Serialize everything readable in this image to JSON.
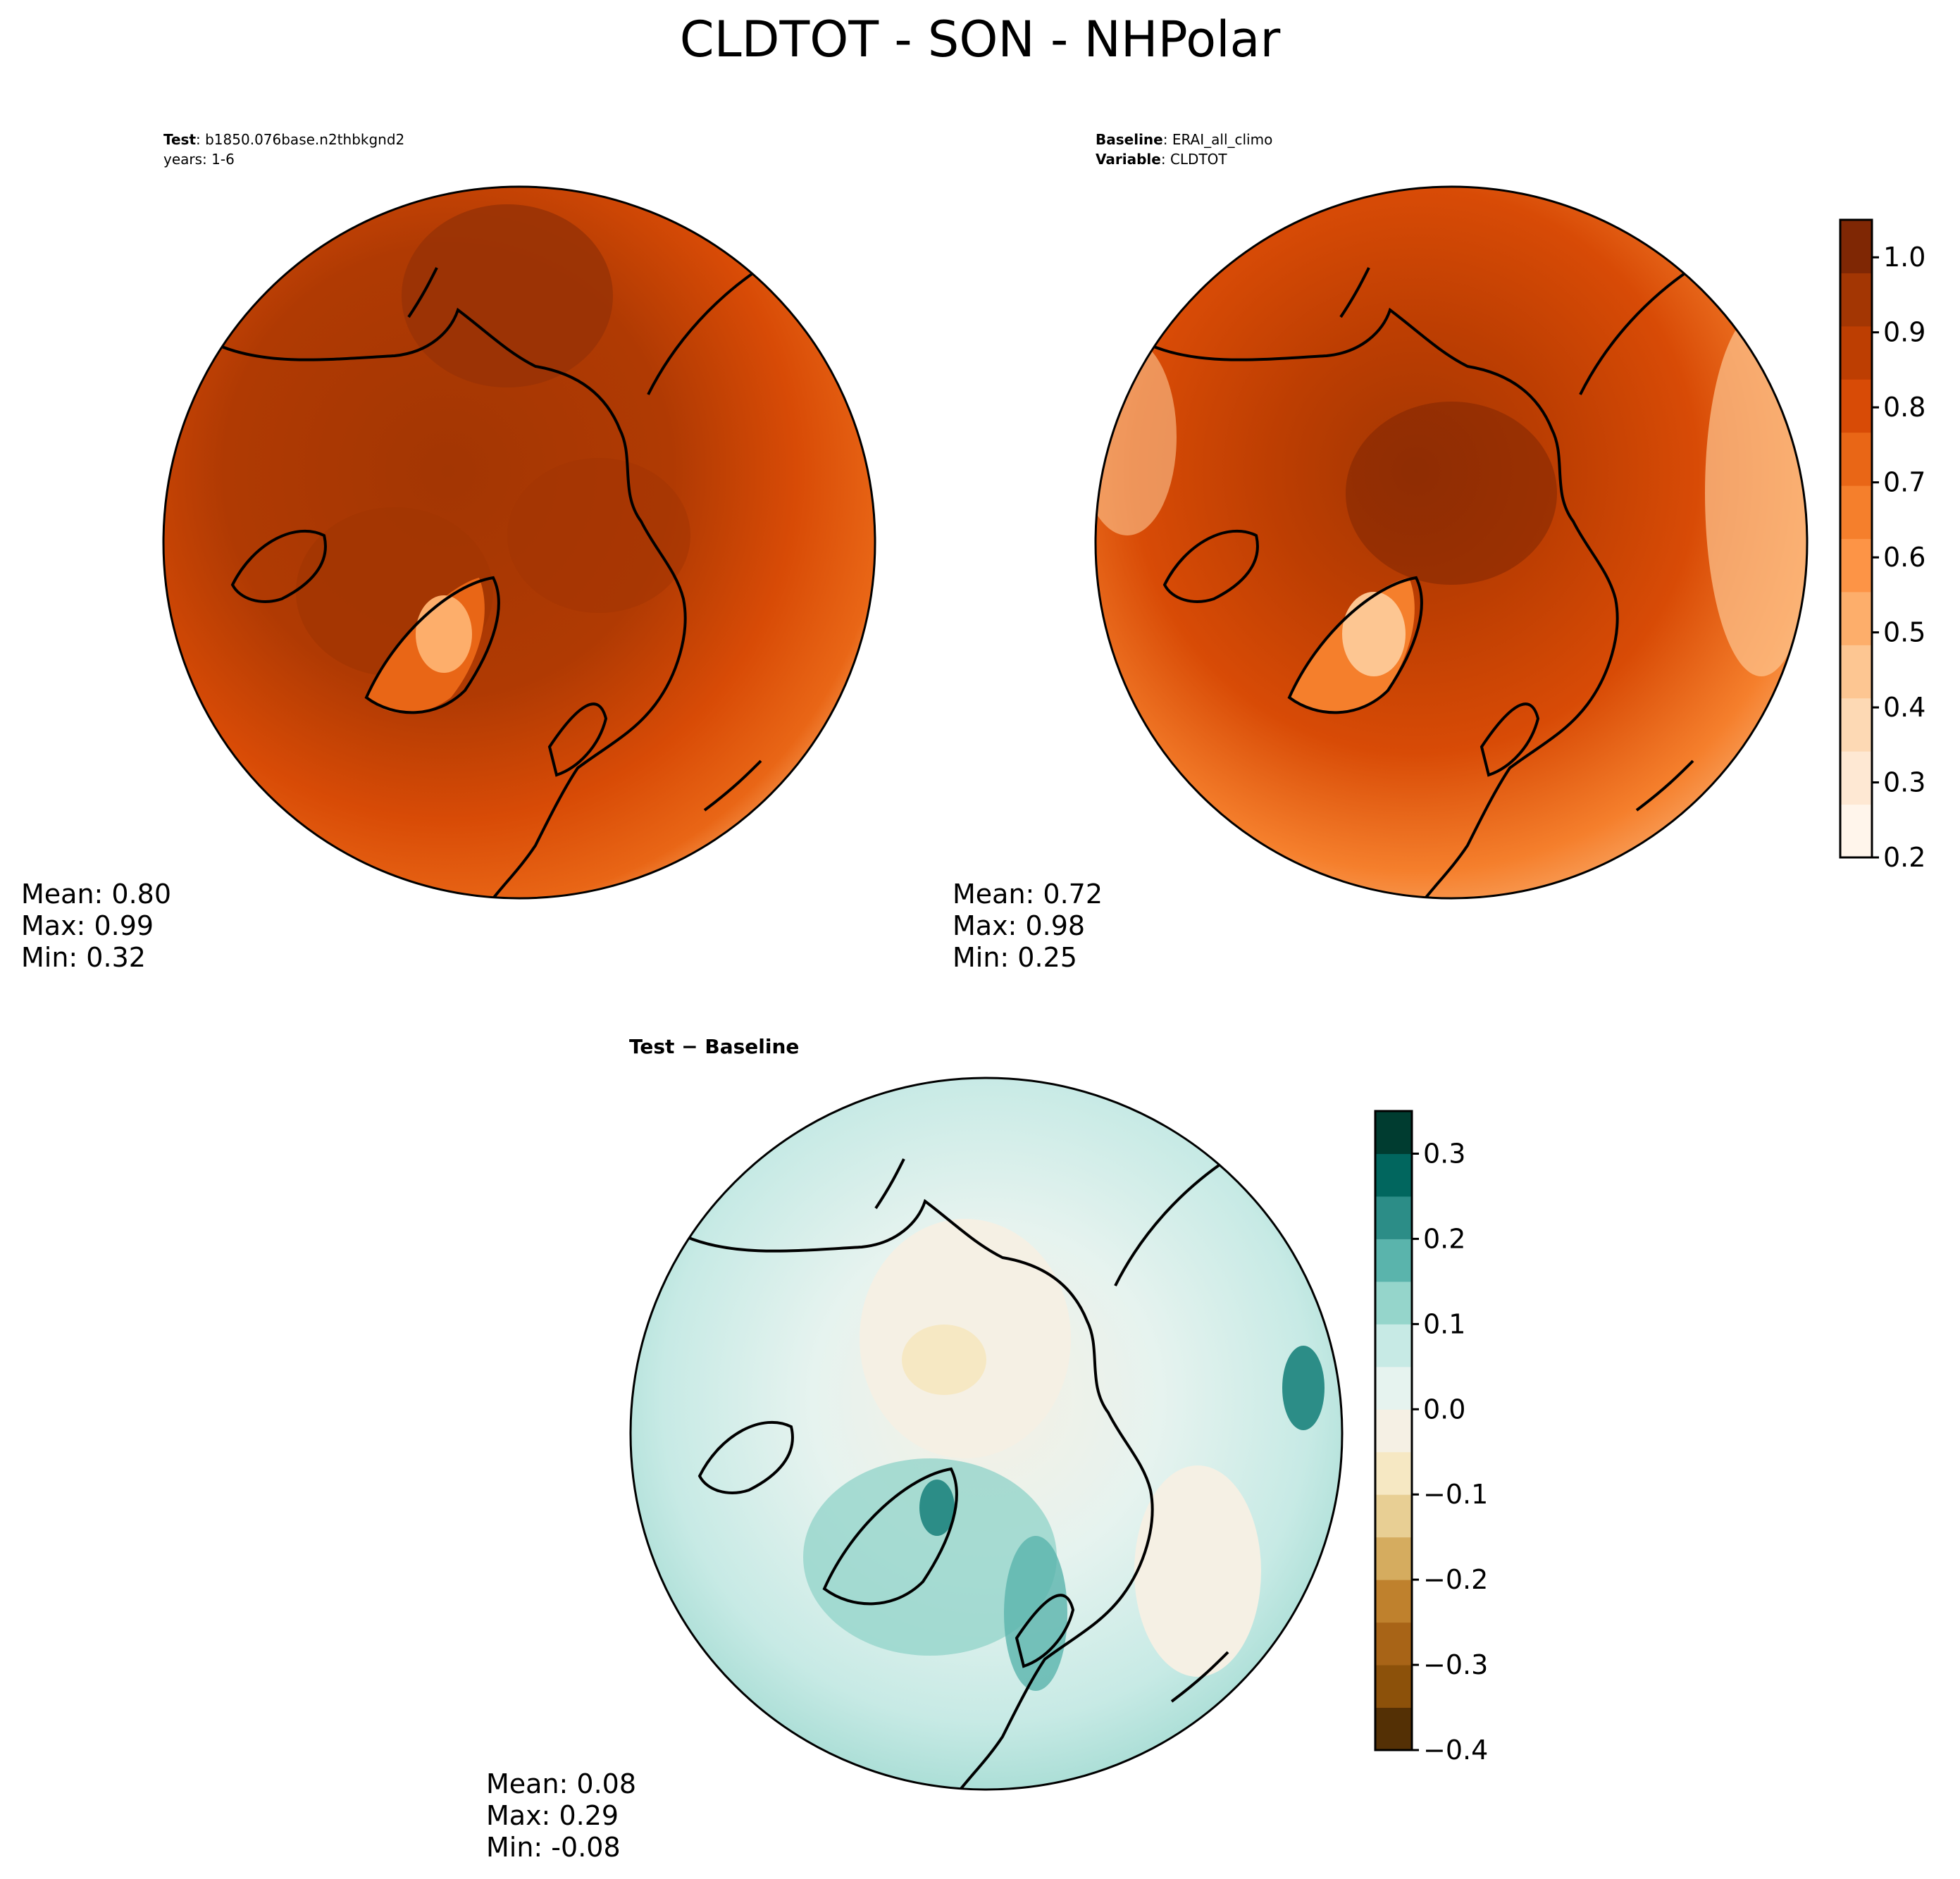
{
  "title": "CLDTOT - SON - NHPolar",
  "panels": [
    {
      "id": "test",
      "header_line1_bold": "Test",
      "header_line1_rest": ": b1850.076base.n2thbkgnd2",
      "header_line2": "years: 1-6",
      "stats": {
        "mean": "Mean:  0.80",
        "max": "Max:  0.99",
        "min": "Min:  0.32"
      }
    },
    {
      "id": "baseline",
      "header_line1_bold": "Baseline",
      "header_line1_rest": ": ERAI_all_climo",
      "header_line2_bold": "Variable",
      "header_line2_rest": ": CLDTOT",
      "stats": {
        "mean": "Mean:  0.72",
        "max": "Max:  0.98",
        "min": "Min:  0.25"
      }
    },
    {
      "id": "diff",
      "header_bold": "Test − Baseline",
      "stats": {
        "mean": "Mean:  0.08",
        "max": "Max:  0.29",
        "min": "Min: -0.08"
      }
    }
  ],
  "colorbar_top": {
    "ticks": [
      "0.2",
      "0.3",
      "0.4",
      "0.5",
      "0.6",
      "0.7",
      "0.8",
      "0.9",
      "1.0"
    ],
    "range": [
      0.2,
      1.05
    ],
    "colors": [
      "#fff5eb",
      "#fee8d3",
      "#fdd9b4",
      "#fdc692",
      "#fdae6b",
      "#fd9446",
      "#f57f2c",
      "#e96616",
      "#d84b06",
      "#bd3e02",
      "#a33603",
      "#7f2704"
    ]
  },
  "colorbar_diff": {
    "ticks": [
      "−0.4",
      "−0.3",
      "−0.2",
      "−0.1",
      "0.0",
      "0.1",
      "0.2",
      "0.3"
    ],
    "range": [
      -0.4,
      0.35
    ],
    "colors": [
      "#543005",
      "#8c510a",
      "#a86417",
      "#bf812d",
      "#d5ac5f",
      "#e8cf94",
      "#f6e8c3",
      "#f5f0e4",
      "#e6f3ef",
      "#c7eae5",
      "#95d5cb",
      "#5ab4ac",
      "#2c8d87",
      "#01665e",
      "#003c30"
    ]
  },
  "chart_data": {
    "type": "heatmap",
    "projection": "north polar stereographic",
    "variable": "CLDTOT",
    "season": "SON",
    "panels": [
      {
        "name": "Test",
        "mean": 0.8,
        "max": 0.99,
        "min": 0.32
      },
      {
        "name": "Baseline",
        "mean": 0.72,
        "max": 0.98,
        "min": 0.25
      },
      {
        "name": "Test − Baseline",
        "mean": 0.08,
        "max": 0.29,
        "min": -0.08
      }
    ]
  }
}
